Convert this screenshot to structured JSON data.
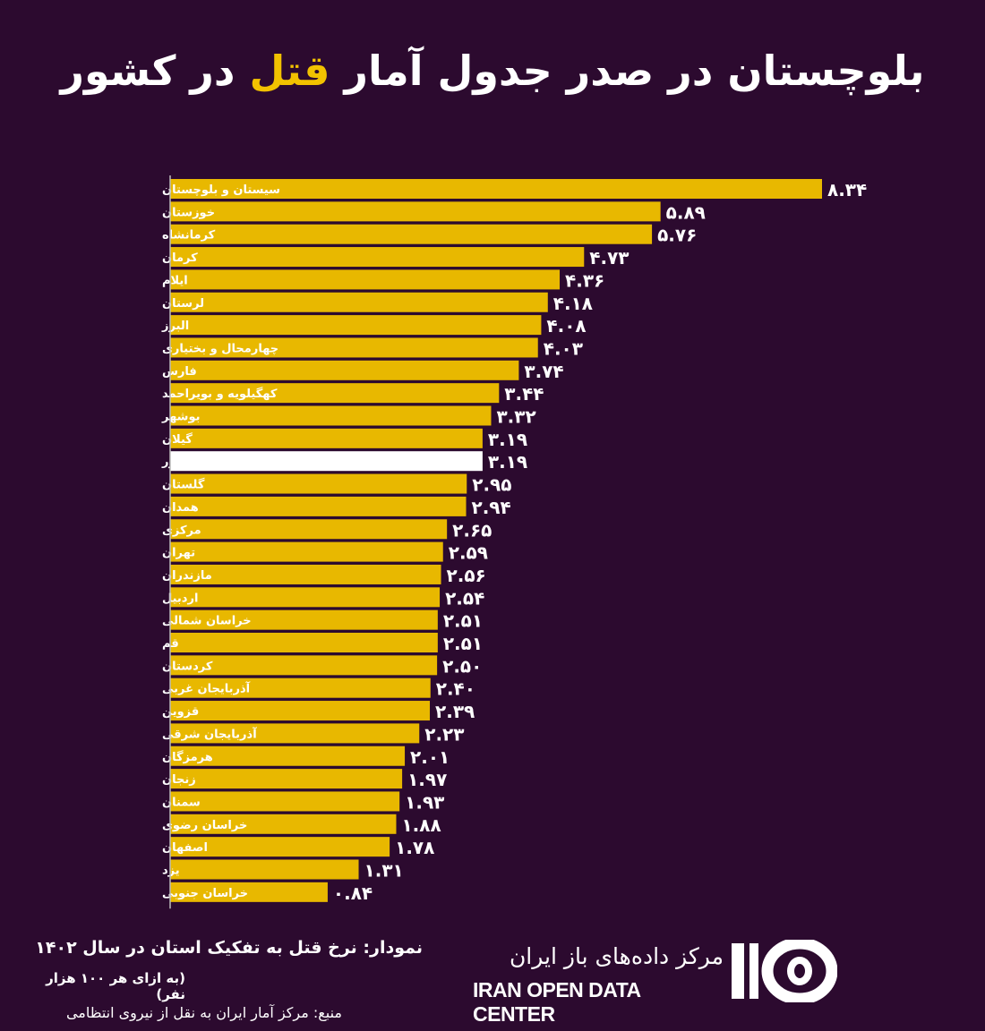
{
  "title": {
    "before": "بلوچستان در صدر جدول آمار",
    "highlight": "قتل",
    "after": "در کشور"
  },
  "colors": {
    "background": "#2c0a2f",
    "bar": "#e8b800",
    "national_bar": "#ffffff",
    "highlight": "#f2c200"
  },
  "chart_data": {
    "type": "bar",
    "orientation": "horizontal",
    "title": "نمودار: نرخ قتل به تفکیک استان در سال ۱۴۰۲",
    "ylabel": "",
    "xlabel": "",
    "unit_note": "(به ازای هر ۱۰۰ هزار نفر)",
    "xlim": [
      -1.55,
      8.34
    ],
    "categories": [
      "سیستان و بلوچستان",
      "خوزستان",
      "کرمانشاه",
      "کرمان",
      "ایلام",
      "لرستان",
      "البرز",
      "چهارمحال و بختیاری",
      "فارس",
      "کهگیلویه و بویراحمد",
      "بوشهر",
      "گیلان",
      "کل کشور",
      "گلستان",
      "همدان",
      "مرکزی",
      "تهران",
      "مازندران",
      "اردبیل",
      "خراسان شمالی",
      "قم",
      "کردستان",
      "آذربایجان غربی",
      "قزوین",
      "آذربایجان شرقی",
      "هرمزگان",
      "زنجان",
      "سمنان",
      "خراسان رضوی",
      "اصفهان",
      "یزد",
      "خراسان جنوبی"
    ],
    "values": [
      8.34,
      5.89,
      5.76,
      4.73,
      4.36,
      4.18,
      4.08,
      4.03,
      3.74,
      3.44,
      3.32,
      3.19,
      3.19,
      2.95,
      2.94,
      2.65,
      2.59,
      2.56,
      2.54,
      2.51,
      2.51,
      2.5,
      2.4,
      2.39,
      2.23,
      2.01,
      1.97,
      1.93,
      1.88,
      1.78,
      1.31,
      0.84
    ],
    "value_labels": [
      "۸.۳۴",
      "۵.۸۹",
      "۵.۷۶",
      "۴.۷۳",
      "۴.۳۶",
      "۴.۱۸",
      "۴.۰۸",
      "۴.۰۳",
      "۳.۷۴",
      "۳.۴۴",
      "۳.۳۲",
      "۳.۱۹",
      "۳.۱۹",
      "۲.۹۵",
      "۲.۹۴",
      "۲.۶۵",
      "۲.۵۹",
      "۲.۵۶",
      "۲.۵۴",
      "۲.۵۱",
      "۲.۵۱",
      "۲.۵۰",
      "۲.۴۰",
      "۲.۳۹",
      "۲.۲۳",
      "۲.۰۱",
      "۱.۹۷",
      "۱.۹۳",
      "۱.۸۸",
      "۱.۷۸",
      "۱.۳۱",
      "۰.۸۴"
    ],
    "highlighted_category": "کل کشور",
    "grid": false
  },
  "footer": {
    "chart_title": "نمودار: نرخ قتل به تفکیک استان در سال ۱۴۰۲",
    "unit": "(به ازای هر ۱۰۰ هزار نفر)",
    "source": "منبع: مرکز آمار ایران به نقل از نیروی انتظامی"
  },
  "logo": {
    "name_fa": "مرکز داده‌های باز ایران",
    "name_en": "IRAN OPEN DATA CENTER"
  }
}
